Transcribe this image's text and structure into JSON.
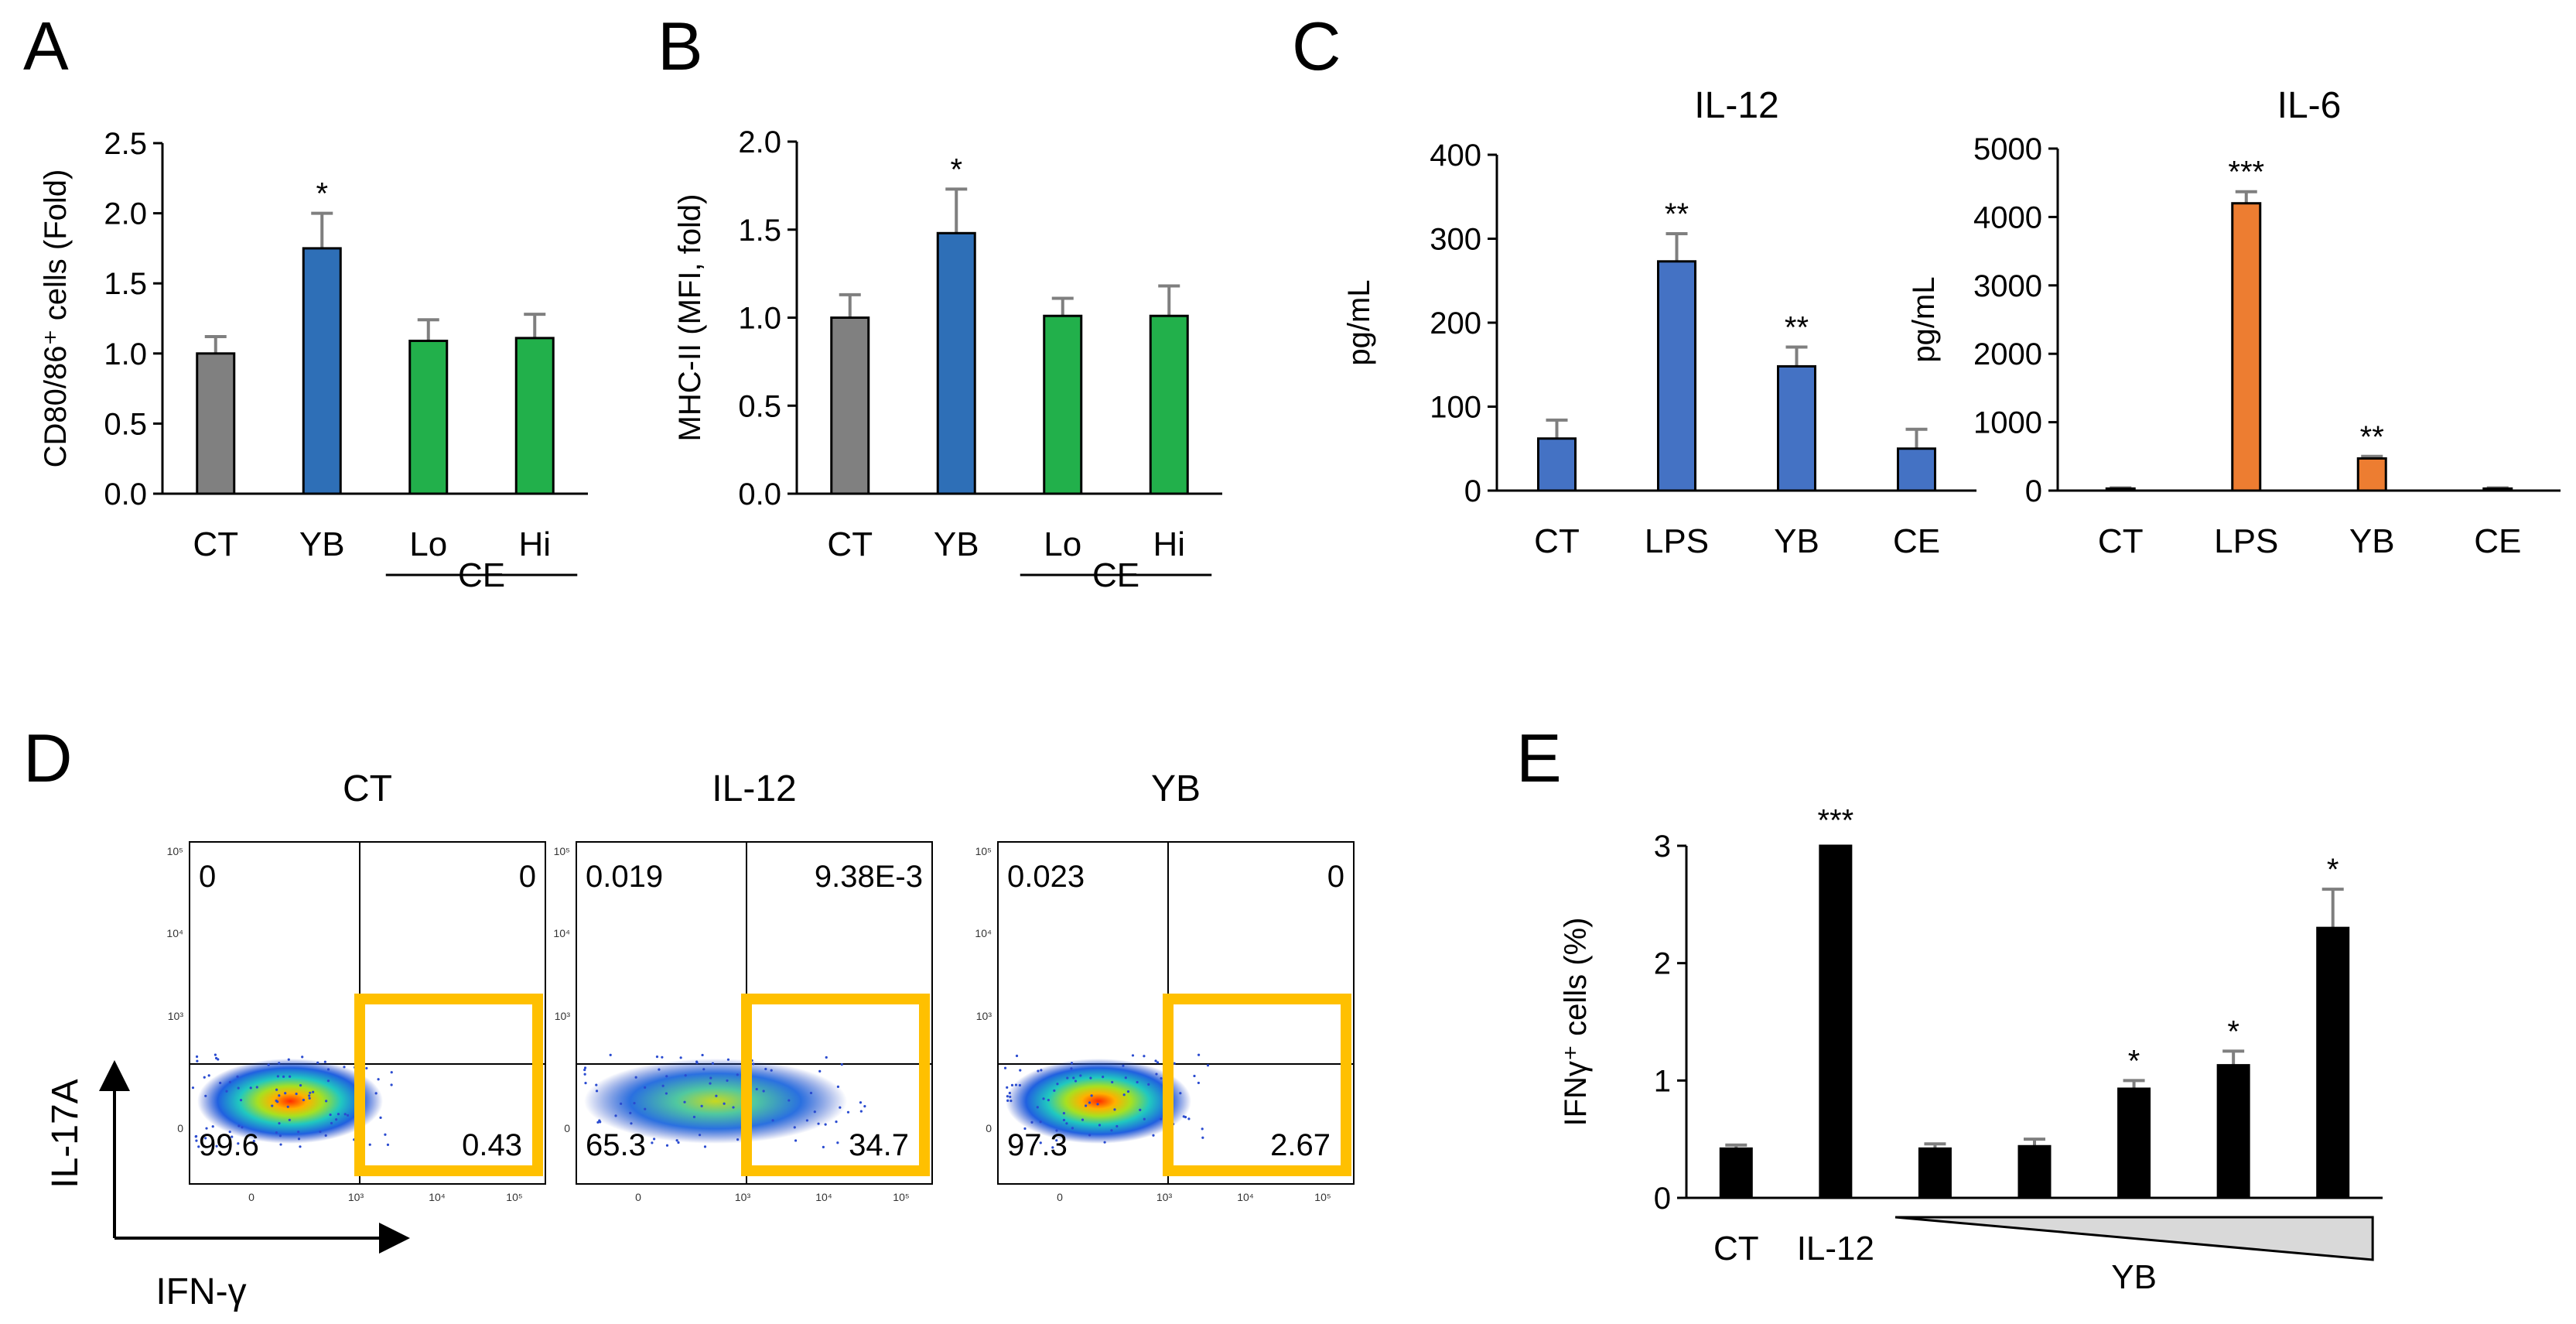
{
  "panels": {
    "A": "A",
    "B": "B",
    "C": "C",
    "D": "D",
    "E": "E"
  },
  "colors": {
    "gray": "#808080",
    "blue": "#2e6fb7",
    "green": "#22b04b",
    "il_blue": "#4472c4",
    "orange": "#ed7d31",
    "black": "#000000",
    "gate": "#ffc000",
    "error": "#7f7f7f"
  },
  "chart_data": [
    {
      "id": "A",
      "type": "bar",
      "title": "",
      "ylabel": "CD80/86⁺ cells (Fold)",
      "ylim": [
        0,
        2.5
      ],
      "yticks": [
        "0.0",
        "0.5",
        "1.0",
        "1.5",
        "2.0",
        "2.5"
      ],
      "categories": [
        "CT",
        "YB",
        "Lo",
        "Hi"
      ],
      "group_label": "CE",
      "values": [
        1.0,
        1.75,
        1.09,
        1.11
      ],
      "errors": [
        0.12,
        0.25,
        0.15,
        0.17
      ],
      "significance": [
        "",
        "*",
        "",
        ""
      ],
      "bar_colors": [
        "gray",
        "blue",
        "green",
        "green"
      ]
    },
    {
      "id": "B",
      "type": "bar",
      "title": "",
      "ylabel": "MHC-II (MFI, fold)",
      "ylim": [
        0,
        2.0
      ],
      "yticks": [
        "0.0",
        "0.5",
        "1.0",
        "1.5",
        "2.0"
      ],
      "categories": [
        "CT",
        "YB",
        "Lo",
        "Hi"
      ],
      "group_label": "CE",
      "values": [
        1.0,
        1.48,
        1.01,
        1.01
      ],
      "errors": [
        0.13,
        0.25,
        0.1,
        0.17
      ],
      "significance": [
        "",
        "*",
        "",
        ""
      ],
      "bar_colors": [
        "gray",
        "blue",
        "green",
        "green"
      ]
    },
    {
      "id": "C1",
      "type": "bar",
      "title": "IL-12",
      "ylabel": "pg/mL",
      "ylim": [
        0,
        400
      ],
      "yticks": [
        "0",
        "100",
        "200",
        "300",
        "400"
      ],
      "categories": [
        "CT",
        "LPS",
        "YB",
        "CE"
      ],
      "values": [
        62,
        273,
        148,
        50
      ],
      "errors": [
        22,
        33,
        23,
        23
      ],
      "significance": [
        "",
        "**",
        "**",
        ""
      ],
      "bar_colors": [
        "il_blue",
        "il_blue",
        "il_blue",
        "il_blue"
      ]
    },
    {
      "id": "C2",
      "type": "bar",
      "title": "IL-6",
      "ylabel": "pg/mL",
      "ylim": [
        0,
        5000
      ],
      "yticks": [
        "0",
        "1000",
        "2000",
        "3000",
        "4000",
        "5000"
      ],
      "categories": [
        "CT",
        "LPS",
        "YB",
        "CE"
      ],
      "values": [
        30,
        4200,
        470,
        30
      ],
      "errors": [
        10,
        170,
        30,
        10
      ],
      "significance": [
        "",
        "***",
        "**",
        ""
      ],
      "bar_colors": [
        "orange",
        "orange",
        "orange",
        "orange"
      ]
    },
    {
      "id": "E",
      "type": "bar",
      "title": "",
      "ylabel": "IFNγ⁺ cells (%)",
      "ylim": [
        0,
        3
      ],
      "yticks": [
        "0",
        "1",
        "2",
        "3"
      ],
      "categories": [
        "CT",
        "IL-12",
        "",
        "",
        "",
        "",
        ""
      ],
      "group_label": "YB",
      "values": [
        0.42,
        3.05,
        0.42,
        0.44,
        0.93,
        1.13,
        2.3
      ],
      "errors": [
        0.03,
        0.0,
        0.04,
        0.06,
        0.07,
        0.12,
        0.33
      ],
      "significance": [
        "",
        "***",
        "",
        "",
        "*",
        "*",
        "*"
      ],
      "bar_colors": [
        "black",
        "black",
        "black",
        "black",
        "black",
        "black",
        "black"
      ]
    }
  ],
  "flow": {
    "y_axis_label": "IL-17A",
    "x_axis_label": "IFN-γ",
    "y_ticks": [
      "10⁵",
      "10⁴",
      "10³",
      "0"
    ],
    "x_ticks": [
      "0",
      "10³",
      "10⁴",
      "10⁵"
    ],
    "plots": [
      {
        "title": "CT",
        "ul": "0",
        "ur": "0",
        "ll": "99.6",
        "lr": "0.43"
      },
      {
        "title": "IL-12",
        "ul": "0.019",
        "ur": "9.38E-3",
        "ll": "65.3",
        "lr": "34.7"
      },
      {
        "title": "YB",
        "ul": "0.023",
        "ur": "0",
        "ll": "97.3",
        "lr": "2.67"
      }
    ]
  }
}
